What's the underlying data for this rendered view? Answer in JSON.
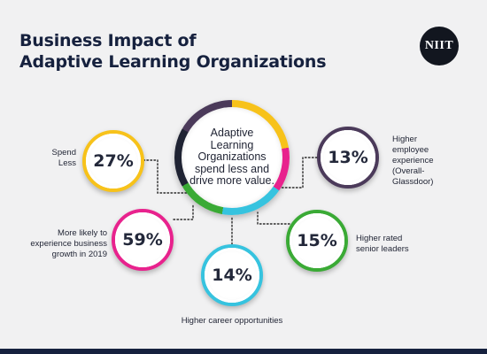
{
  "title": {
    "line1": "Business Impact of",
    "line2": "Adaptive Learning Organizations"
  },
  "logo_text": "NIIT",
  "center_text": "Adaptive Learning Organizations spend less and drive more value.",
  "stats": [
    {
      "id": "spend",
      "value": "27%",
      "label": "Spend Less",
      "color": "#f7c21a"
    },
    {
      "id": "growth",
      "value": "59%",
      "label": "More likely to experience business growth in 2019",
      "color": "#e8228d"
    },
    {
      "id": "career",
      "value": "14%",
      "label": "Higher career opportunities",
      "color": "#36c3df"
    },
    {
      "id": "leaders",
      "value": "15%",
      "label": "Higher rated senior leaders",
      "color": "#3aaa35"
    },
    {
      "id": "employee",
      "value": "13%",
      "label": "Higher employee experience (Overall-Glassdoor)",
      "color": "#4b3a5a"
    }
  ],
  "colors": {
    "background": "#f1f1f2",
    "title": "#16213e",
    "connector": "#2a2a2a"
  }
}
